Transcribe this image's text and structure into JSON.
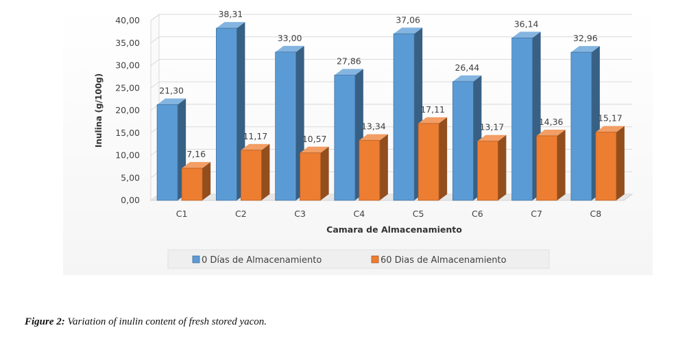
{
  "chart_data": {
    "type": "bar",
    "categories": [
      "C1",
      "C2",
      "C3",
      "C4",
      "C5",
      "C6",
      "C7",
      "C8"
    ],
    "series": [
      {
        "name": "0 Días de Almacenamiento",
        "values": [
          21.3,
          38.31,
          33.0,
          27.86,
          37.06,
          26.44,
          36.14,
          32.96
        ],
        "labels": [
          "21,30",
          "38,31",
          "33,00",
          "27,86",
          "37,06",
          "26,44",
          "36,14",
          "32,96"
        ],
        "color": "#5b9bd5"
      },
      {
        "name": "60 Dias de Almacenamiento",
        "values": [
          7.16,
          11.17,
          10.57,
          13.34,
          17.11,
          13.17,
          14.36,
          15.17
        ],
        "labels": [
          "7,16",
          "11,17",
          "10,57",
          "13,34",
          "17,11",
          "13,17",
          "14,36",
          "15,17"
        ],
        "color": "#ed7d31"
      }
    ],
    "yticks": [
      "0,00",
      "5,00",
      "10,00",
      "15,00",
      "20,00",
      "25,00",
      "30,00",
      "35,00",
      "40,00"
    ],
    "xlabel": "Camara de Almacenamiento",
    "ylabel": "Inulina (g/100g)",
    "ylim": [
      0,
      40
    ],
    "grid": true,
    "legend": "bottom",
    "style": "3d-clustered-column"
  },
  "caption": {
    "label": "Figure 2:",
    "text": " Variation of inulin content of fresh stored yacon."
  }
}
